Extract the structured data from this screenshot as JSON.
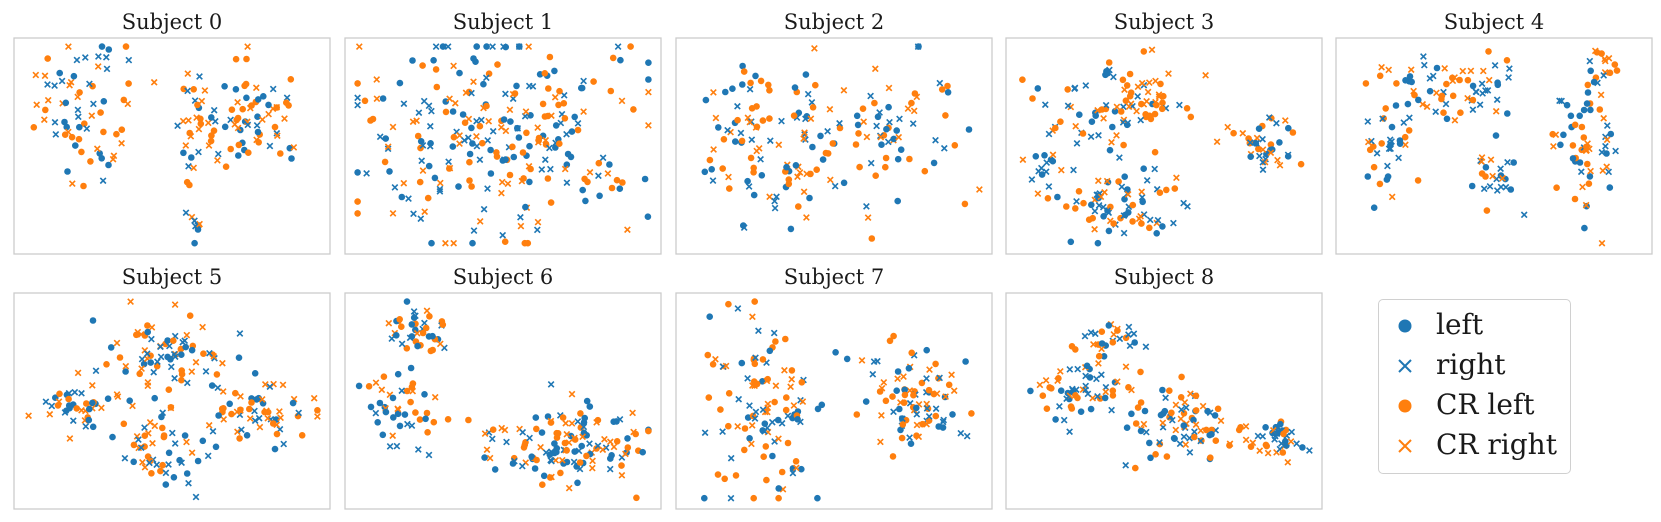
{
  "chart_data": {
    "type": "scatter",
    "colors": {
      "blue": "#1f77b4",
      "orange": "#ff7f0e"
    },
    "series": [
      {
        "name": "left",
        "marker": "circle",
        "color": "#1f77b4"
      },
      {
        "name": "right",
        "marker": "x",
        "color": "#1f77b4"
      },
      {
        "name": "CR left",
        "marker": "circle",
        "color": "#ff7f0e"
      },
      {
        "name": "CR right",
        "marker": "x",
        "color": "#ff7f0e"
      }
    ],
    "axes_visible": false,
    "legend_position": "bottom-right",
    "panels": [
      {
        "title": "Subject 0",
        "clusters": [
          [
            0.23,
            0.35,
            0.14,
            0.36,
            70
          ],
          [
            0.56,
            0.45,
            0.05,
            0.32,
            32
          ],
          [
            0.76,
            0.4,
            0.15,
            0.27,
            68
          ],
          [
            0.57,
            0.86,
            0.03,
            0.04,
            6
          ]
        ]
      },
      {
        "title": "Subject 1",
        "clusters": [
          [
            0.5,
            0.45,
            0.42,
            0.38,
            260
          ]
        ]
      },
      {
        "title": "Subject 2",
        "clusters": [
          [
            0.2,
            0.45,
            0.12,
            0.38,
            60
          ],
          [
            0.68,
            0.42,
            0.17,
            0.32,
            70
          ],
          [
            0.4,
            0.56,
            0.1,
            0.34,
            45
          ]
        ]
      },
      {
        "title": "Subject 3",
        "clusters": [
          [
            0.35,
            0.3,
            0.22,
            0.17,
            90
          ],
          [
            0.35,
            0.78,
            0.22,
            0.18,
            80
          ],
          [
            0.82,
            0.5,
            0.1,
            0.12,
            40
          ],
          [
            0.13,
            0.55,
            0.05,
            0.15,
            15
          ]
        ]
      },
      {
        "title": "Subject 4",
        "clusters": [
          [
            0.35,
            0.25,
            0.22,
            0.14,
            70
          ],
          [
            0.16,
            0.55,
            0.08,
            0.2,
            30
          ],
          [
            0.5,
            0.62,
            0.07,
            0.15,
            25
          ],
          [
            0.8,
            0.5,
            0.09,
            0.3,
            60
          ],
          [
            0.85,
            0.15,
            0.05,
            0.1,
            15
          ]
        ]
      },
      {
        "title": "Subject 5",
        "clusters": [
          [
            0.48,
            0.3,
            0.18,
            0.18,
            80
          ],
          [
            0.2,
            0.5,
            0.12,
            0.12,
            40
          ],
          [
            0.45,
            0.72,
            0.13,
            0.18,
            50
          ],
          [
            0.78,
            0.55,
            0.14,
            0.15,
            60
          ]
        ]
      },
      {
        "title": "Subject 6",
        "clusters": [
          [
            0.23,
            0.17,
            0.1,
            0.1,
            40
          ],
          [
            0.17,
            0.55,
            0.12,
            0.15,
            45
          ],
          [
            0.7,
            0.7,
            0.22,
            0.18,
            130
          ]
        ]
      },
      {
        "title": "Subject 7",
        "clusters": [
          [
            0.28,
            0.5,
            0.17,
            0.37,
            110
          ],
          [
            0.75,
            0.52,
            0.17,
            0.22,
            90
          ]
        ]
      },
      {
        "title": "Subject 8",
        "clusters": [
          [
            0.25,
            0.45,
            0.14,
            0.16,
            60
          ],
          [
            0.55,
            0.6,
            0.18,
            0.18,
            80
          ],
          [
            0.85,
            0.68,
            0.08,
            0.07,
            40
          ],
          [
            0.32,
            0.22,
            0.08,
            0.1,
            25
          ]
        ]
      }
    ]
  }
}
